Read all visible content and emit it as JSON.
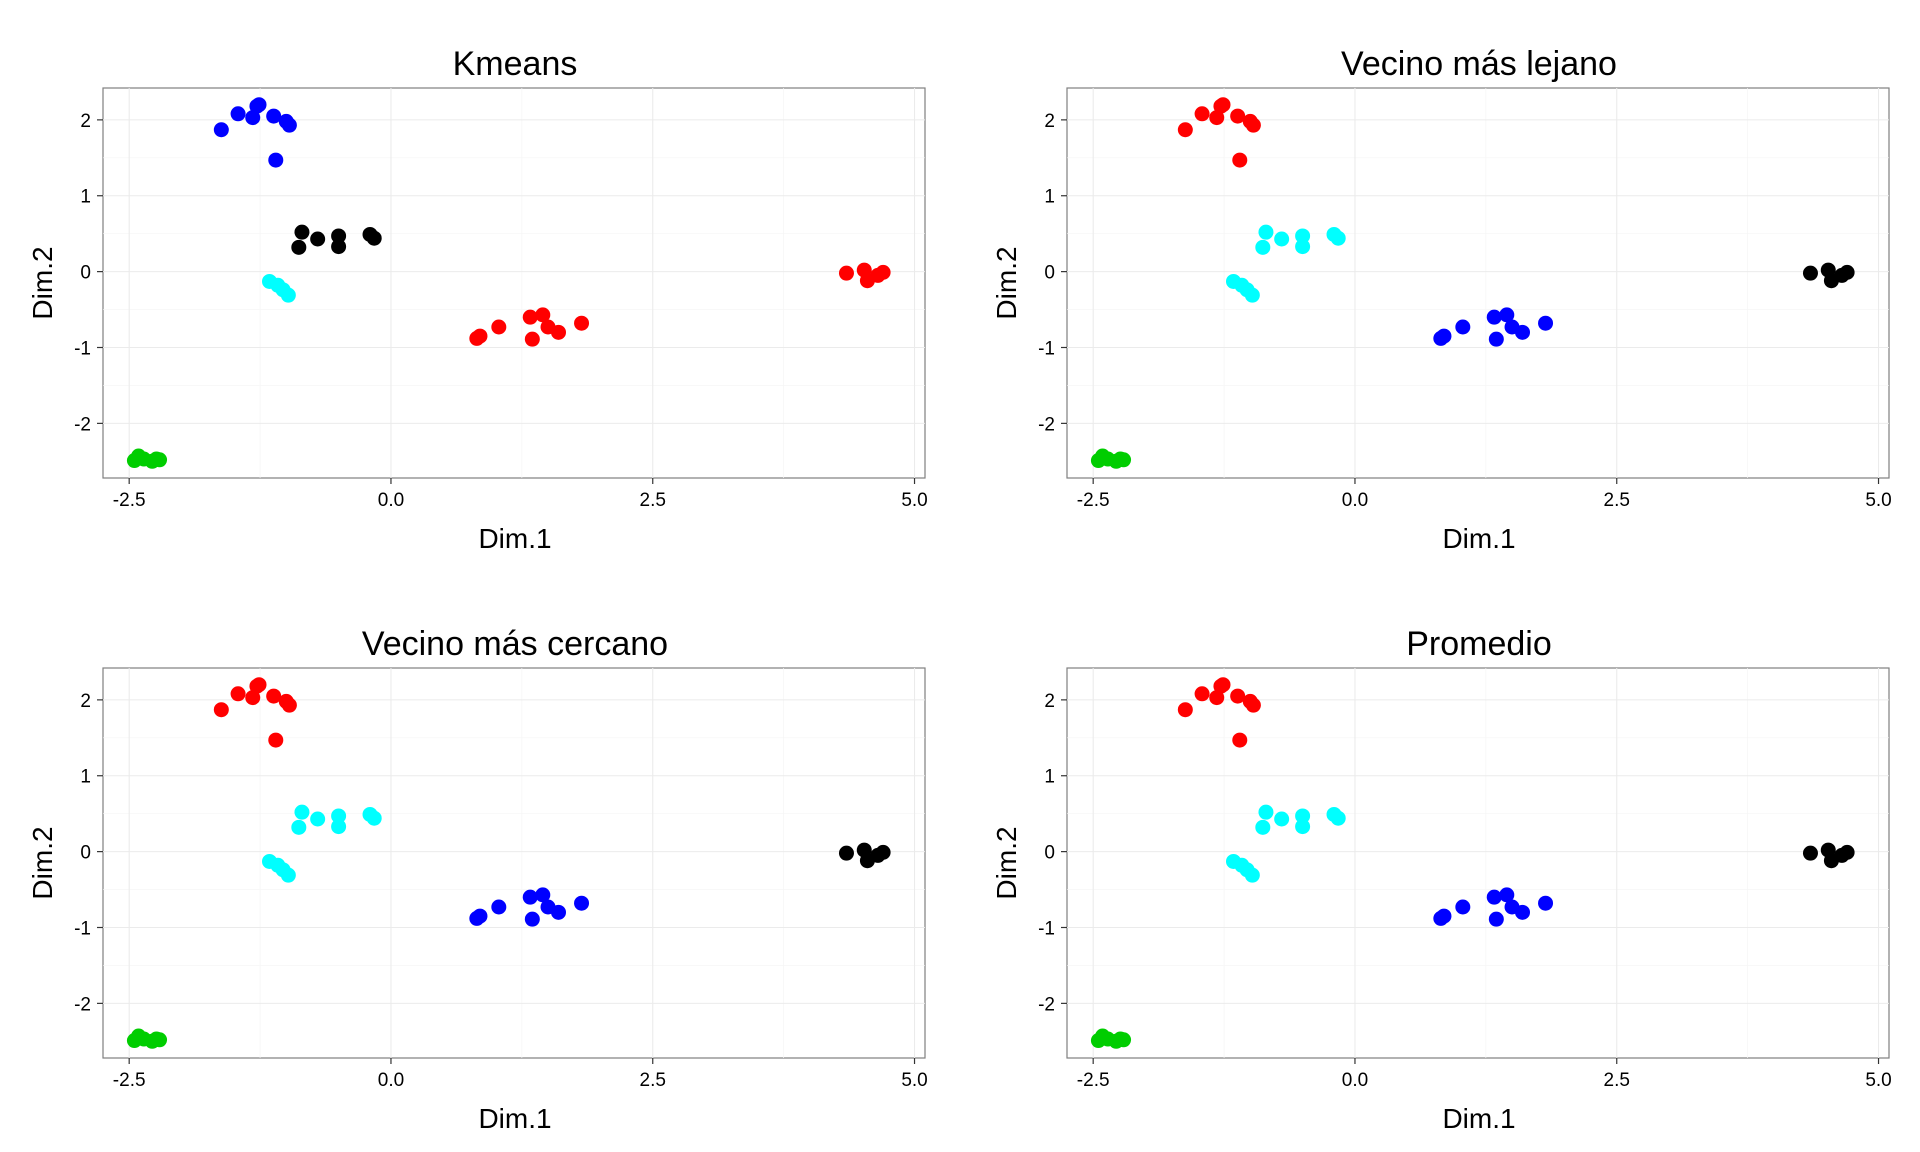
{
  "colors": {
    "black": "#000000",
    "red": "#ff0000",
    "green": "#00cd00",
    "blue": "#0000ff",
    "cyan": "#00ffff"
  },
  "chart_data": [
    {
      "type": "scatter",
      "title": "Kmeans",
      "xlabel": "Dim.1",
      "ylabel": "Dim.2",
      "xlim": [
        -2.75,
        5.1
      ],
      "ylim": [
        -2.72,
        2.42
      ],
      "xticks": [
        "-2.5",
        "0.0",
        "2.5",
        "5.0"
      ],
      "yticks": [
        "-2",
        "-1",
        "0",
        "1",
        "2"
      ],
      "grid": true,
      "series": [
        {
          "color": "#0000ff",
          "points": [
            [
              -1.62,
              1.87
            ],
            [
              -1.46,
              2.08
            ],
            [
              -1.32,
              2.03
            ],
            [
              -1.28,
              2.18
            ],
            [
              -1.26,
              2.2
            ],
            [
              -1.12,
              2.05
            ],
            [
              -1.0,
              1.98
            ],
            [
              -0.97,
              1.93
            ],
            [
              -1.1,
              1.47
            ]
          ]
        },
        {
          "color": "#000000",
          "points": [
            [
              -0.85,
              0.52
            ],
            [
              -0.7,
              0.43
            ],
            [
              -0.5,
              0.47
            ],
            [
              -0.2,
              0.49
            ],
            [
              -0.16,
              0.44
            ],
            [
              -0.88,
              0.32
            ],
            [
              -0.5,
              0.33
            ]
          ]
        },
        {
          "color": "#00ffff",
          "points": [
            [
              -1.16,
              -0.13
            ],
            [
              -1.08,
              -0.18
            ],
            [
              -1.03,
              -0.24
            ],
            [
              -0.98,
              -0.31
            ]
          ]
        },
        {
          "color": "#ff0000",
          "points": [
            [
              0.82,
              -0.88
            ],
            [
              0.85,
              -0.85
            ],
            [
              1.03,
              -0.73
            ],
            [
              1.33,
              -0.6
            ],
            [
              1.45,
              -0.57
            ],
            [
              1.5,
              -0.73
            ],
            [
              1.6,
              -0.8
            ],
            [
              1.82,
              -0.68
            ],
            [
              1.35,
              -0.89
            ]
          ]
        },
        {
          "color": "#ff0000",
          "points": [
            [
              4.35,
              -0.02
            ],
            [
              4.52,
              0.02
            ],
            [
              4.55,
              -0.12
            ],
            [
              4.65,
              -0.05
            ],
            [
              4.7,
              -0.01
            ]
          ]
        },
        {
          "color": "#00cd00",
          "points": [
            [
              -2.45,
              -2.49
            ],
            [
              -2.41,
              -2.43
            ],
            [
              -2.36,
              -2.47
            ],
            [
              -2.28,
              -2.5
            ],
            [
              -2.24,
              -2.47
            ],
            [
              -2.21,
              -2.48
            ]
          ]
        }
      ]
    },
    {
      "type": "scatter",
      "title": "Vecino más lejano",
      "xlabel": "Dim.1",
      "ylabel": "Dim.2",
      "xlim": [
        -2.75,
        5.1
      ],
      "ylim": [
        -2.72,
        2.42
      ],
      "xticks": [
        "-2.5",
        "0.0",
        "2.5",
        "5.0"
      ],
      "yticks": [
        "-2",
        "-1",
        "0",
        "1",
        "2"
      ],
      "grid": true,
      "series": [
        {
          "color": "#ff0000",
          "points": [
            [
              -1.62,
              1.87
            ],
            [
              -1.46,
              2.08
            ],
            [
              -1.32,
              2.03
            ],
            [
              -1.28,
              2.18
            ],
            [
              -1.26,
              2.2
            ],
            [
              -1.12,
              2.05
            ],
            [
              -1.0,
              1.98
            ],
            [
              -0.97,
              1.93
            ],
            [
              -1.1,
              1.47
            ]
          ]
        },
        {
          "color": "#00ffff",
          "points": [
            [
              -0.85,
              0.52
            ],
            [
              -0.7,
              0.43
            ],
            [
              -0.5,
              0.47
            ],
            [
              -0.2,
              0.49
            ],
            [
              -0.16,
              0.44
            ],
            [
              -0.88,
              0.32
            ],
            [
              -0.5,
              0.33
            ],
            [
              -1.16,
              -0.13
            ],
            [
              -1.08,
              -0.18
            ],
            [
              -1.03,
              -0.24
            ],
            [
              -0.98,
              -0.31
            ]
          ]
        },
        {
          "color": "#0000ff",
          "points": [
            [
              0.82,
              -0.88
            ],
            [
              0.85,
              -0.85
            ],
            [
              1.03,
              -0.73
            ],
            [
              1.33,
              -0.6
            ],
            [
              1.45,
              -0.57
            ],
            [
              1.5,
              -0.73
            ],
            [
              1.6,
              -0.8
            ],
            [
              1.82,
              -0.68
            ],
            [
              1.35,
              -0.89
            ]
          ]
        },
        {
          "color": "#000000",
          "points": [
            [
              4.35,
              -0.02
            ],
            [
              4.52,
              0.02
            ],
            [
              4.55,
              -0.12
            ],
            [
              4.65,
              -0.05
            ],
            [
              4.7,
              -0.01
            ]
          ]
        },
        {
          "color": "#00cd00",
          "points": [
            [
              -2.45,
              -2.49
            ],
            [
              -2.41,
              -2.43
            ],
            [
              -2.36,
              -2.47
            ],
            [
              -2.28,
              -2.5
            ],
            [
              -2.24,
              -2.47
            ],
            [
              -2.21,
              -2.48
            ]
          ]
        }
      ]
    },
    {
      "type": "scatter",
      "title": "Vecino más cercano",
      "xlabel": "Dim.1",
      "ylabel": "Dim.2",
      "xlim": [
        -2.75,
        5.1
      ],
      "ylim": [
        -2.72,
        2.42
      ],
      "xticks": [
        "-2.5",
        "0.0",
        "2.5",
        "5.0"
      ],
      "yticks": [
        "-2",
        "-1",
        "0",
        "1",
        "2"
      ],
      "grid": true,
      "series": [
        {
          "color": "#ff0000",
          "points": [
            [
              -1.62,
              1.87
            ],
            [
              -1.46,
              2.08
            ],
            [
              -1.32,
              2.03
            ],
            [
              -1.28,
              2.18
            ],
            [
              -1.26,
              2.2
            ],
            [
              -1.12,
              2.05
            ],
            [
              -1.0,
              1.98
            ],
            [
              -0.97,
              1.93
            ],
            [
              -1.1,
              1.47
            ]
          ]
        },
        {
          "color": "#00ffff",
          "points": [
            [
              -0.85,
              0.52
            ],
            [
              -0.7,
              0.43
            ],
            [
              -0.5,
              0.47
            ],
            [
              -0.2,
              0.49
            ],
            [
              -0.16,
              0.44
            ],
            [
              -0.88,
              0.32
            ],
            [
              -0.5,
              0.33
            ],
            [
              -1.16,
              -0.13
            ],
            [
              -1.08,
              -0.18
            ],
            [
              -1.03,
              -0.24
            ],
            [
              -0.98,
              -0.31
            ]
          ]
        },
        {
          "color": "#0000ff",
          "points": [
            [
              0.82,
              -0.88
            ],
            [
              0.85,
              -0.85
            ],
            [
              1.03,
              -0.73
            ],
            [
              1.33,
              -0.6
            ],
            [
              1.45,
              -0.57
            ],
            [
              1.5,
              -0.73
            ],
            [
              1.6,
              -0.8
            ],
            [
              1.82,
              -0.68
            ],
            [
              1.35,
              -0.89
            ]
          ]
        },
        {
          "color": "#000000",
          "points": [
            [
              4.35,
              -0.02
            ],
            [
              4.52,
              0.02
            ],
            [
              4.55,
              -0.12
            ],
            [
              4.65,
              -0.05
            ],
            [
              4.7,
              -0.01
            ]
          ]
        },
        {
          "color": "#00cd00",
          "points": [
            [
              -2.45,
              -2.49
            ],
            [
              -2.41,
              -2.43
            ],
            [
              -2.36,
              -2.47
            ],
            [
              -2.28,
              -2.5
            ],
            [
              -2.24,
              -2.47
            ],
            [
              -2.21,
              -2.48
            ]
          ]
        }
      ]
    },
    {
      "type": "scatter",
      "title": "Promedio",
      "xlabel": "Dim.1",
      "ylabel": "Dim.2",
      "xlim": [
        -2.75,
        5.1
      ],
      "ylim": [
        -2.72,
        2.42
      ],
      "xticks": [
        "-2.5",
        "0.0",
        "2.5",
        "5.0"
      ],
      "yticks": [
        "-2",
        "-1",
        "0",
        "1",
        "2"
      ],
      "grid": true,
      "series": [
        {
          "color": "#ff0000",
          "points": [
            [
              -1.62,
              1.87
            ],
            [
              -1.46,
              2.08
            ],
            [
              -1.32,
              2.03
            ],
            [
              -1.28,
              2.18
            ],
            [
              -1.26,
              2.2
            ],
            [
              -1.12,
              2.05
            ],
            [
              -1.0,
              1.98
            ],
            [
              -0.97,
              1.93
            ],
            [
              -1.1,
              1.47
            ]
          ]
        },
        {
          "color": "#00ffff",
          "points": [
            [
              -0.85,
              0.52
            ],
            [
              -0.7,
              0.43
            ],
            [
              -0.5,
              0.47
            ],
            [
              -0.2,
              0.49
            ],
            [
              -0.16,
              0.44
            ],
            [
              -0.88,
              0.32
            ],
            [
              -0.5,
              0.33
            ],
            [
              -1.16,
              -0.13
            ],
            [
              -1.08,
              -0.18
            ],
            [
              -1.03,
              -0.24
            ],
            [
              -0.98,
              -0.31
            ]
          ]
        },
        {
          "color": "#0000ff",
          "points": [
            [
              0.82,
              -0.88
            ],
            [
              0.85,
              -0.85
            ],
            [
              1.03,
              -0.73
            ],
            [
              1.33,
              -0.6
            ],
            [
              1.45,
              -0.57
            ],
            [
              1.5,
              -0.73
            ],
            [
              1.6,
              -0.8
            ],
            [
              1.82,
              -0.68
            ],
            [
              1.35,
              -0.89
            ]
          ]
        },
        {
          "color": "#000000",
          "points": [
            [
              4.35,
              -0.02
            ],
            [
              4.52,
              0.02
            ],
            [
              4.55,
              -0.12
            ],
            [
              4.65,
              -0.05
            ],
            [
              4.7,
              -0.01
            ]
          ]
        },
        {
          "color": "#00cd00",
          "points": [
            [
              -2.45,
              -2.49
            ],
            [
              -2.41,
              -2.43
            ],
            [
              -2.36,
              -2.47
            ],
            [
              -2.28,
              -2.5
            ],
            [
              -2.24,
              -2.47
            ],
            [
              -2.21,
              -2.48
            ]
          ]
        }
      ]
    }
  ]
}
